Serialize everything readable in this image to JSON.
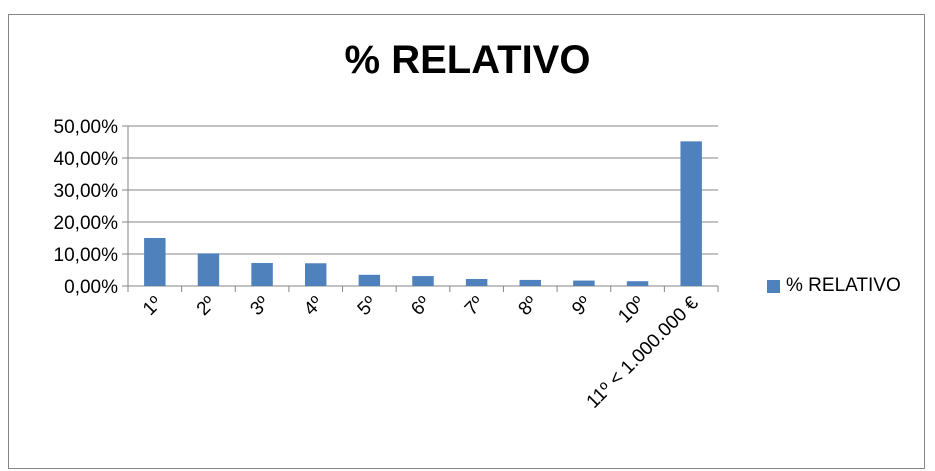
{
  "chart_data": {
    "type": "bar",
    "title": "% RELATIVO",
    "xlabel": "",
    "ylabel": "",
    "categories": [
      "1º",
      "2º",
      "3º",
      "4º",
      "5º",
      "6º",
      "7º",
      "8º",
      "9º",
      "10º",
      "11º < 1.000.000 €"
    ],
    "series": [
      {
        "name": "% RELATIVO",
        "values": [
          15.0,
          10.2,
          7.2,
          7.1,
          3.5,
          3.1,
          2.2,
          1.9,
          1.7,
          1.5,
          45.2
        ]
      }
    ],
    "ylim": [
      0,
      50
    ],
    "yticks": [
      "0,00%",
      "10,00%",
      "20,00%",
      "30,00%",
      "40,00%",
      "50,00%"
    ],
    "grid": true,
    "legend": "right",
    "bar_color": "#4F81BD"
  }
}
